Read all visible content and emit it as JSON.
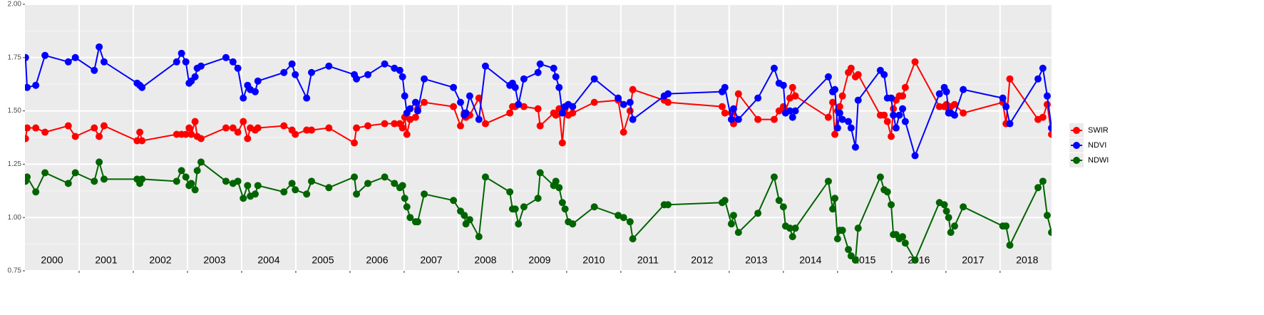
{
  "chart_data": {
    "type": "line",
    "x": [
      2000.01,
      2000.04,
      2000.2,
      2000.37,
      2000.8,
      2000.93,
      2001.28,
      2001.37,
      2001.46,
      2002.07,
      2002.12,
      2002.16,
      2002.8,
      2002.89,
      2002.97,
      2003.03,
      2003.07,
      2003.14,
      2003.18,
      2003.25,
      2003.71,
      2003.84,
      2003.93,
      2004.03,
      2004.11,
      2004.16,
      2004.25,
      2004.3,
      2004.78,
      2004.93,
      2004.99,
      2005.2,
      2005.29,
      2005.61,
      2006.08,
      2006.12,
      2006.33,
      2006.64,
      2006.82,
      2006.92,
      2006.97,
      2007.01,
      2007.05,
      2007.11,
      2007.21,
      2007.25,
      2007.37,
      2007.91,
      2008.04,
      2008.11,
      2008.14,
      2008.21,
      2008.38,
      2008.5,
      2008.95,
      2009.0,
      2009.05,
      2009.11,
      2009.21,
      2009.47,
      2009.51,
      2009.76,
      2009.8,
      2009.86,
      2009.92,
      2009.97,
      2010.03,
      2010.11,
      2010.51,
      2010.95,
      2011.05,
      2011.17,
      2011.22,
      2011.8,
      2011.87,
      2012.87,
      2012.92,
      2013.04,
      2013.08,
      2013.17,
      2013.53,
      2013.83,
      2013.92,
      2014.0,
      2014.04,
      2014.12,
      2014.17,
      2014.22,
      2014.83,
      2014.91,
      2014.95,
      2015.0,
      2015.04,
      2015.09,
      2015.2,
      2015.25,
      2015.33,
      2015.38,
      2015.79,
      2015.86,
      2015.92,
      2015.99,
      2016.03,
      2016.08,
      2016.14,
      2016.2,
      2016.25,
      2016.43,
      2016.88,
      2016.97,
      2017.01,
      2017.05,
      2017.09,
      2017.16,
      2017.32,
      2018.05,
      2018.11,
      2018.18,
      2018.7,
      2018.79,
      2018.87,
      2018.95
    ],
    "series": [
      {
        "name": "SWIR",
        "color": "#ff0000",
        "values": [
          1.37,
          1.42,
          1.42,
          1.4,
          1.43,
          1.38,
          1.42,
          1.38,
          1.43,
          1.36,
          1.4,
          1.36,
          1.39,
          1.39,
          1.39,
          1.42,
          1.39,
          1.45,
          1.38,
          1.37,
          1.42,
          1.42,
          1.4,
          1.45,
          1.37,
          1.42,
          1.41,
          1.42,
          1.43,
          1.41,
          1.39,
          1.41,
          1.41,
          1.42,
          1.35,
          1.42,
          1.43,
          1.44,
          1.44,
          1.44,
          1.42,
          1.47,
          1.39,
          1.46,
          1.47,
          1.51,
          1.54,
          1.52,
          1.43,
          1.49,
          1.47,
          1.48,
          1.56,
          1.44,
          1.49,
          1.52,
          1.52,
          1.53,
          1.52,
          1.51,
          1.43,
          1.49,
          1.48,
          1.51,
          1.35,
          1.51,
          1.48,
          1.49,
          1.54,
          1.55,
          1.4,
          1.5,
          1.6,
          1.55,
          1.54,
          1.52,
          1.49,
          1.49,
          1.44,
          1.58,
          1.46,
          1.46,
          1.5,
          1.52,
          1.5,
          1.56,
          1.61,
          1.57,
          1.47,
          1.54,
          1.39,
          1.5,
          1.52,
          1.57,
          1.68,
          1.7,
          1.66,
          1.67,
          1.48,
          1.48,
          1.45,
          1.38,
          1.51,
          1.55,
          1.57,
          1.57,
          1.61,
          1.73,
          1.52,
          1.52,
          1.53,
          1.51,
          1.52,
          1.53,
          1.49,
          1.54,
          1.44,
          1.65,
          1.46,
          1.47,
          1.53,
          1.39
        ]
      },
      {
        "name": "NDVI",
        "color": "#0000ff",
        "values": [
          1.75,
          1.61,
          1.62,
          1.76,
          1.73,
          1.75,
          1.69,
          1.8,
          1.73,
          1.63,
          1.62,
          1.61,
          1.73,
          1.77,
          1.73,
          1.63,
          1.64,
          1.66,
          1.7,
          1.71,
          1.75,
          1.73,
          1.7,
          1.56,
          1.62,
          1.6,
          1.59,
          1.64,
          1.68,
          1.72,
          1.67,
          1.56,
          1.68,
          1.71,
          1.67,
          1.65,
          1.67,
          1.72,
          1.7,
          1.69,
          1.66,
          1.57,
          1.49,
          1.51,
          1.54,
          1.5,
          1.65,
          1.61,
          1.54,
          1.48,
          1.49,
          1.57,
          1.46,
          1.71,
          1.62,
          1.63,
          1.61,
          1.53,
          1.65,
          1.68,
          1.72,
          1.7,
          1.66,
          1.61,
          1.49,
          1.52,
          1.53,
          1.52,
          1.65,
          1.56,
          1.53,
          1.54,
          1.46,
          1.57,
          1.58,
          1.59,
          1.61,
          1.46,
          1.51,
          1.46,
          1.56,
          1.7,
          1.63,
          1.62,
          1.49,
          1.5,
          1.47,
          1.5,
          1.66,
          1.59,
          1.6,
          1.42,
          1.49,
          1.46,
          1.45,
          1.42,
          1.33,
          1.55,
          1.69,
          1.67,
          1.56,
          1.56,
          1.48,
          1.42,
          1.48,
          1.51,
          1.45,
          1.29,
          1.58,
          1.61,
          1.59,
          1.49,
          1.49,
          1.48,
          1.6,
          1.56,
          1.52,
          1.44,
          1.65,
          1.7,
          1.57,
          1.42
        ]
      },
      {
        "name": "NDWI",
        "color": "#006400",
        "values": [
          1.17,
          1.19,
          1.12,
          1.21,
          1.16,
          1.21,
          1.17,
          1.26,
          1.18,
          1.18,
          1.16,
          1.18,
          1.17,
          1.22,
          1.19,
          1.15,
          1.16,
          1.13,
          1.22,
          1.26,
          1.17,
          1.16,
          1.17,
          1.09,
          1.15,
          1.1,
          1.11,
          1.15,
          1.12,
          1.16,
          1.13,
          1.11,
          1.17,
          1.14,
          1.19,
          1.11,
          1.16,
          1.19,
          1.16,
          1.14,
          1.15,
          1.09,
          1.05,
          1.0,
          0.98,
          0.98,
          1.11,
          1.08,
          1.03,
          1.01,
          0.97,
          0.99,
          0.91,
          1.19,
          1.12,
          1.04,
          1.04,
          0.97,
          1.05,
          1.09,
          1.21,
          1.15,
          1.17,
          1.14,
          1.07,
          1.04,
          0.98,
          0.97,
          1.05,
          1.01,
          1.0,
          0.98,
          0.9,
          1.06,
          1.06,
          1.07,
          1.08,
          0.97,
          1.01,
          0.93,
          1.02,
          1.19,
          1.08,
          1.05,
          0.96,
          0.95,
          0.91,
          0.95,
          1.17,
          1.04,
          1.09,
          0.9,
          0.94,
          0.94,
          0.85,
          0.82,
          0.8,
          0.95,
          1.19,
          1.13,
          1.12,
          1.06,
          0.92,
          0.92,
          0.9,
          0.91,
          0.88,
          0.8,
          1.07,
          1.06,
          1.03,
          1.0,
          0.93,
          0.96,
          1.05,
          0.96,
          0.96,
          0.87,
          1.14,
          1.17,
          1.01,
          0.93
        ]
      }
    ],
    "xlim": [
      2000,
      2018.95
    ],
    "ylim": [
      0.75,
      2
    ],
    "yticks": [
      0.75,
      {
        "value": 1,
        "label": "1.00"
      },
      1.25,
      {
        "value": 1.5,
        "label": "1.50"
      },
      1.75,
      {
        "value": 2,
        "label": "2.00"
      }
    ],
    "y_minor_ticks": [
      0.875,
      1.125,
      1.375,
      1.625,
      1.875
    ],
    "x_grid": [
      2001,
      2002,
      2003,
      2004,
      2005,
      2006,
      2007,
      2008,
      2009,
      2010,
      2011,
      2012,
      2013,
      2014,
      2015,
      2016,
      2017,
      2018
    ],
    "year_labels": [
      {
        "value": 2000.5,
        "label": "2000"
      },
      {
        "value": 2001.5,
        "label": "2001"
      },
      {
        "value": 2002.5,
        "label": "2002"
      },
      {
        "value": 2003.5,
        "label": "2003"
      },
      {
        "value": 2004.5,
        "label": "2004"
      },
      {
        "value": 2005.5,
        "label": "2005"
      },
      {
        "value": 2006.5,
        "label": "2006"
      },
      {
        "value": 2007.5,
        "label": "2007"
      },
      {
        "value": 2008.5,
        "label": "2008"
      },
      {
        "value": 2009.5,
        "label": "2009"
      },
      {
        "value": 2010.5,
        "label": "2010"
      },
      {
        "value": 2011.5,
        "label": "2011"
      },
      {
        "value": 2012.5,
        "label": "2012"
      },
      {
        "value": 2013.5,
        "label": "2013"
      },
      {
        "value": 2014.5,
        "label": "2014"
      },
      {
        "value": 2015.5,
        "label": "2015"
      },
      {
        "value": 2016.5,
        "label": "2016"
      },
      {
        "value": 2017.5,
        "label": "2017"
      },
      {
        "value": 2018.5,
        "label": "2018"
      }
    ],
    "grid": true,
    "legend": "right"
  }
}
